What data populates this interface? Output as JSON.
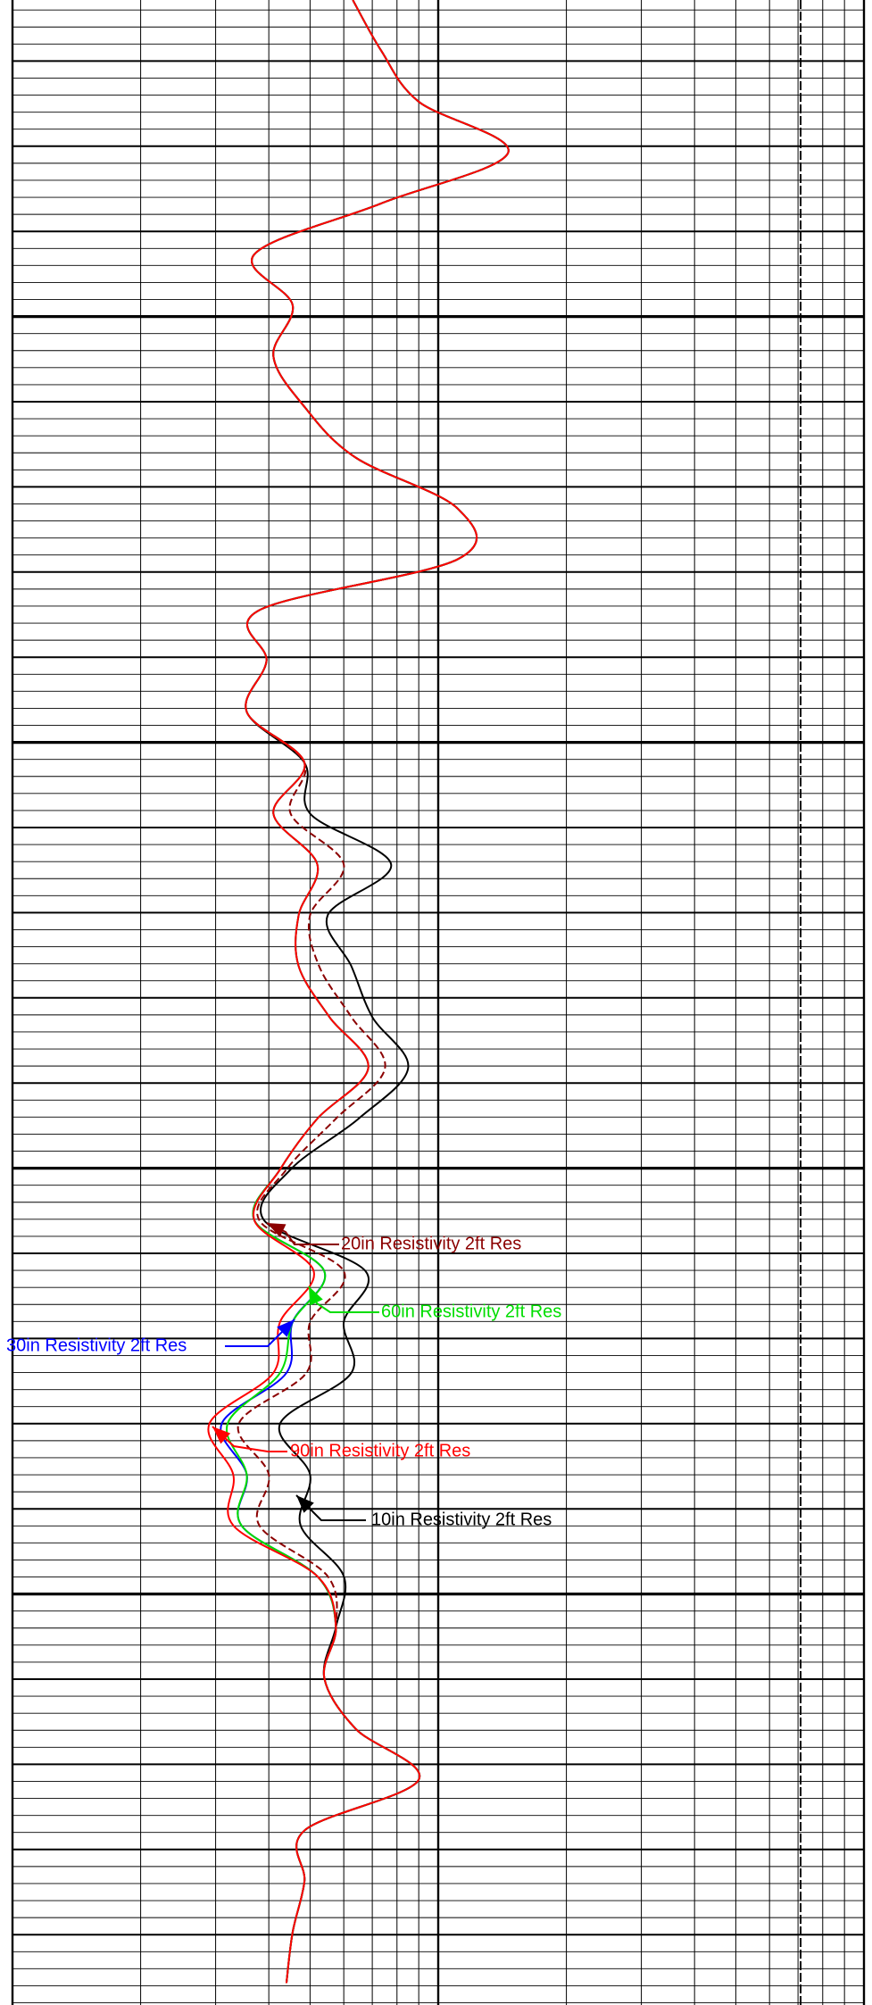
{
  "chart_data": {
    "type": "log-track",
    "log_scale": true,
    "grid": true,
    "xlim": [
      0.2,
      20
    ],
    "xticks": [
      0.2,
      0.4,
      0.6,
      0.8,
      1,
      1.2,
      1.4,
      1.6,
      1.8,
      2,
      4,
      6,
      8,
      10,
      12,
      14,
      16,
      18,
      20
    ],
    "series": [
      {
        "name": "10in Resistivity 2ft Res",
        "color": "#000000",
        "dash": false,
        "values": [
          1.26,
          1.47,
          1.8,
          2.92,
          1.47,
          0.74,
          0.91,
          0.82,
          0.97,
          1.28,
          2.22,
          2.22,
          0.76,
          0.79,
          0.71,
          0.97,
          1.0,
          1.55,
          1.1,
          1.25,
          1.4,
          1.7,
          1.3,
          0.9,
          0.78,
          1.35,
          1.2,
          1.25,
          0.85,
          1.0,
          0.95,
          1.2,
          1.15,
          1.08,
          1.28,
          1.8,
          0.97,
          0.97,
          0.91,
          0.88
        ]
      },
      {
        "name": "20in Resistivity 2ft Res",
        "color": "#8b0000",
        "dash": true,
        "values": [
          1.26,
          1.47,
          1.8,
          2.92,
          1.47,
          0.74,
          0.91,
          0.82,
          0.97,
          1.28,
          2.22,
          2.22,
          0.76,
          0.79,
          0.71,
          0.97,
          0.9,
          1.2,
          1.0,
          1.05,
          1.25,
          1.5,
          1.15,
          0.88,
          0.76,
          1.2,
          1.0,
          0.98,
          0.68,
          0.8,
          0.76,
          1.1,
          1.15,
          1.08,
          1.28,
          1.8,
          0.97,
          0.97,
          0.91,
          0.88
        ]
      },
      {
        "name": "30in Resistivity 2ft Res",
        "color": "#0000ff",
        "dash": false,
        "values": [
          1.26,
          1.47,
          1.8,
          2.92,
          1.47,
          0.74,
          0.91,
          0.82,
          0.97,
          1.28,
          2.22,
          2.22,
          0.76,
          0.79,
          0.71,
          0.97,
          0.82,
          1.04,
          0.94,
          0.94,
          1.11,
          1.37,
          1.04,
          0.85,
          0.74,
          1.08,
          0.91,
          0.88,
          0.62,
          0.71,
          0.69,
          1.04,
          1.15,
          1.08,
          1.28,
          1.8,
          0.97,
          0.97,
          0.91,
          0.88
        ]
      },
      {
        "name": "60in Resistivity 2ft Res",
        "color": "#00dd00",
        "dash": false,
        "values": [
          1.26,
          1.47,
          1.8,
          2.92,
          1.47,
          0.74,
          0.91,
          0.82,
          0.97,
          1.28,
          2.22,
          2.22,
          0.76,
          0.79,
          0.71,
          0.97,
          0.82,
          1.04,
          0.94,
          0.94,
          1.11,
          1.37,
          1.04,
          0.85,
          0.74,
          1.08,
          0.91,
          0.85,
          0.64,
          0.71,
          0.69,
          1.04,
          1.15,
          1.08,
          1.28,
          1.8,
          0.97,
          0.97,
          0.91,
          0.88
        ]
      },
      {
        "name": "90in Resistivity 2ft Res",
        "color": "#ff0000",
        "dash": false,
        "values": [
          1.26,
          1.47,
          1.8,
          2.92,
          1.47,
          0.74,
          0.91,
          0.82,
          0.97,
          1.28,
          2.22,
          2.22,
          0.76,
          0.79,
          0.71,
          0.97,
          0.82,
          1.04,
          0.94,
          0.94,
          1.11,
          1.37,
          1.04,
          0.85,
          0.74,
          1.02,
          0.85,
          0.82,
          0.58,
          0.66,
          0.66,
          1.04,
          1.15,
          1.08,
          1.28,
          1.8,
          0.97,
          0.97,
          0.91,
          0.88
        ]
      }
    ]
  }
}
